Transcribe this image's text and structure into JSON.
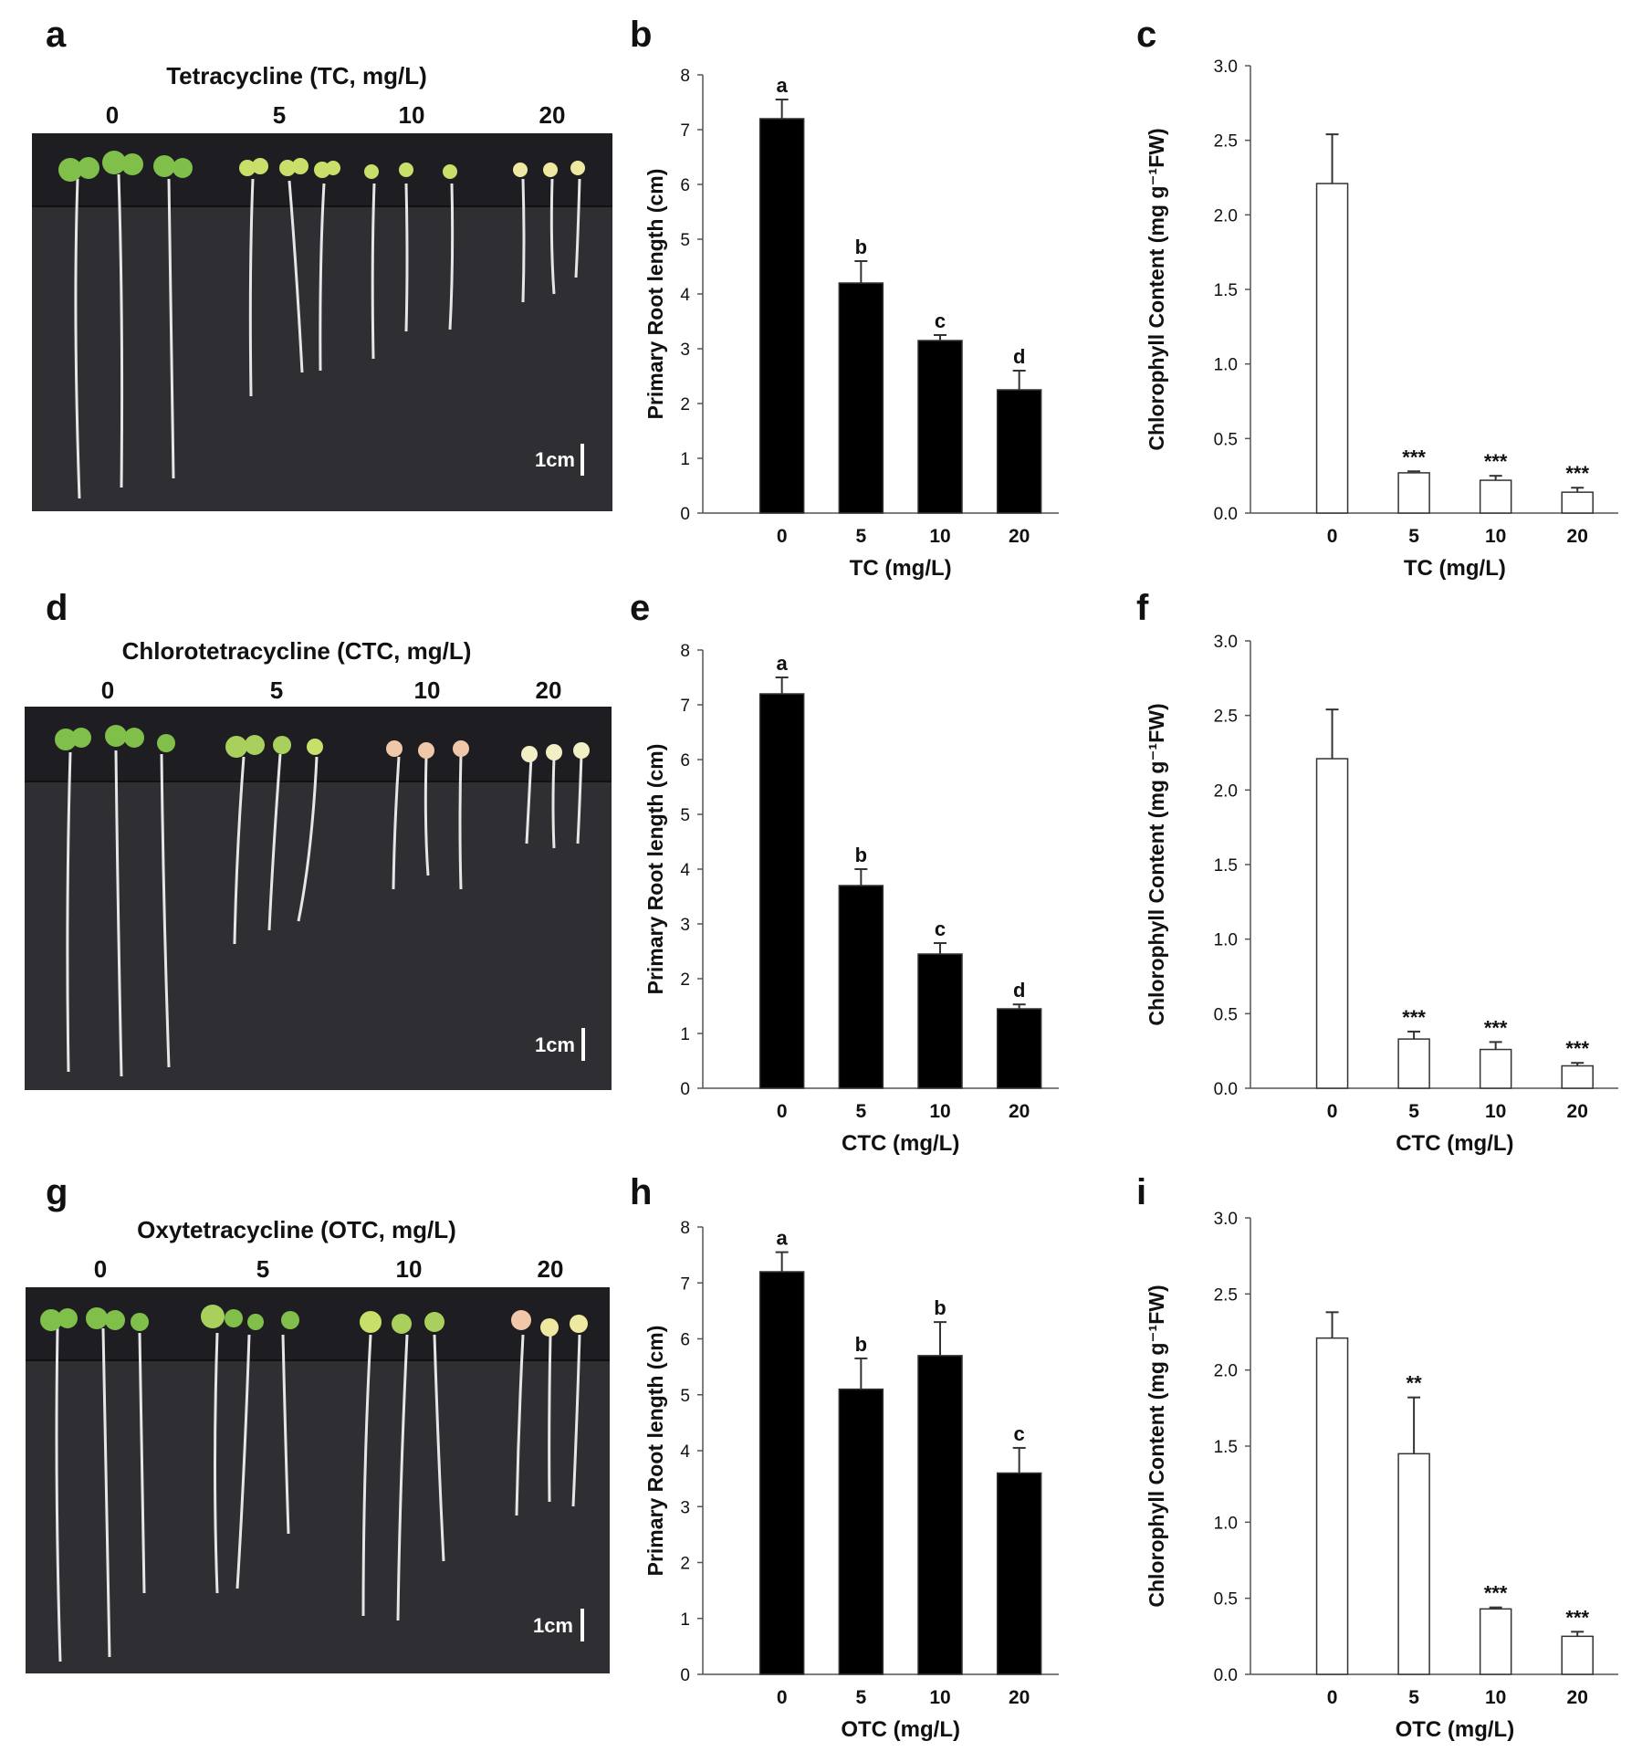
{
  "figure": {
    "rows": [
      {
        "photo": {
          "letter": "a",
          "title": "Tetracycline (TC, mg/L)",
          "concentrations": [
            "0",
            "5",
            "10",
            "20"
          ],
          "scale_bar": "1cm"
        },
        "root_chart": {
          "letter": "b"
        },
        "chl_chart": {
          "letter": "c"
        }
      },
      {
        "photo": {
          "letter": "d",
          "title": "Chlorotetracycline (CTC, mg/L)",
          "concentrations": [
            "0",
            "5",
            "10",
            "20"
          ],
          "scale_bar": "1cm"
        },
        "root_chart": {
          "letter": "e"
        },
        "chl_chart": {
          "letter": "f"
        }
      },
      {
        "photo": {
          "letter": "g",
          "title": "Oxytetracycline (OTC, mg/L)",
          "concentrations": [
            "0",
            "5",
            "10",
            "20"
          ],
          "scale_bar": "1cm"
        },
        "root_chart": {
          "letter": "h"
        },
        "chl_chart": {
          "letter": "i"
        }
      }
    ]
  },
  "chart_data": [
    {
      "panel": "b",
      "type": "bar",
      "categories": [
        "0",
        "5",
        "10",
        "20"
      ],
      "values": [
        7.2,
        4.2,
        3.15,
        2.25
      ],
      "errors": [
        0.35,
        0.4,
        0.1,
        0.35
      ],
      "annotations": [
        "a",
        "b",
        "c",
        "d"
      ],
      "xlabel": "TC (mg/L)",
      "ylabel": "Primary Root length (cm)",
      "ylim": [
        0,
        8
      ],
      "yticks": [
        "0",
        "1",
        "2",
        "3",
        "4",
        "5",
        "6",
        "7",
        "8"
      ],
      "bar_color": "#000000"
    },
    {
      "panel": "c",
      "type": "bar",
      "categories": [
        "0",
        "5",
        "10",
        "20"
      ],
      "values": [
        2.21,
        0.27,
        0.22,
        0.14
      ],
      "errors": [
        0.33,
        0.01,
        0.03,
        0.03
      ],
      "annotations": [
        "",
        "***",
        "***",
        "***"
      ],
      "xlabel": "TC (mg/L)",
      "ylabel": "Chlorophyll Content (mg g⁻¹FW)",
      "ylim": [
        0,
        3.0
      ],
      "yticks": [
        "0.0",
        "0.5",
        "1.0",
        "1.5",
        "2.0",
        "2.5",
        "3.0"
      ],
      "bar_color": "#ffffff"
    },
    {
      "panel": "e",
      "type": "bar",
      "categories": [
        "0",
        "5",
        "10",
        "20"
      ],
      "values": [
        7.2,
        3.7,
        2.45,
        1.45
      ],
      "errors": [
        0.3,
        0.3,
        0.2,
        0.08
      ],
      "annotations": [
        "a",
        "b",
        "c",
        "d"
      ],
      "xlabel": "CTC (mg/L)",
      "ylabel": "Primary Root length (cm)",
      "ylim": [
        0,
        8
      ],
      "yticks": [
        "0",
        "1",
        "2",
        "3",
        "4",
        "5",
        "6",
        "7",
        "8"
      ],
      "bar_color": "#000000"
    },
    {
      "panel": "f",
      "type": "bar",
      "categories": [
        "0",
        "5",
        "10",
        "20"
      ],
      "values": [
        2.21,
        0.33,
        0.26,
        0.15
      ],
      "errors": [
        0.33,
        0.05,
        0.05,
        0.02
      ],
      "annotations": [
        "",
        "***",
        "***",
        "***"
      ],
      "xlabel": "CTC (mg/L)",
      "ylabel": "Chlorophyll Content (mg g⁻¹FW)",
      "ylim": [
        0,
        3.0
      ],
      "yticks": [
        "0.0",
        "0.5",
        "1.0",
        "1.5",
        "2.0",
        "2.5",
        "3.0"
      ],
      "bar_color": "#ffffff"
    },
    {
      "panel": "h",
      "type": "bar",
      "categories": [
        "0",
        "5",
        "10",
        "20"
      ],
      "values": [
        7.2,
        5.1,
        5.7,
        3.6
      ],
      "errors": [
        0.35,
        0.55,
        0.6,
        0.45
      ],
      "annotations": [
        "a",
        "b",
        "b",
        "c"
      ],
      "xlabel": "OTC (mg/L)",
      "ylabel": "Primary Root length (cm)",
      "ylim": [
        0,
        8
      ],
      "yticks": [
        "0",
        "1",
        "2",
        "3",
        "4",
        "5",
        "6",
        "7",
        "8"
      ],
      "bar_color": "#000000"
    },
    {
      "panel": "i",
      "type": "bar",
      "categories": [
        "0",
        "5",
        "10",
        "20"
      ],
      "values": [
        2.21,
        1.45,
        0.43,
        0.25
      ],
      "errors": [
        0.17,
        0.37,
        0.01,
        0.03
      ],
      "annotations": [
        "",
        "**",
        "***",
        "***"
      ],
      "xlabel": "OTC (mg/L)",
      "ylabel": "Chlorophyll Content (mg g⁻¹FW)",
      "ylim": [
        0,
        3.0
      ],
      "yticks": [
        "0.0",
        "0.5",
        "1.0",
        "1.5",
        "2.0",
        "2.5",
        "3.0"
      ],
      "bar_color": "#ffffff"
    }
  ]
}
